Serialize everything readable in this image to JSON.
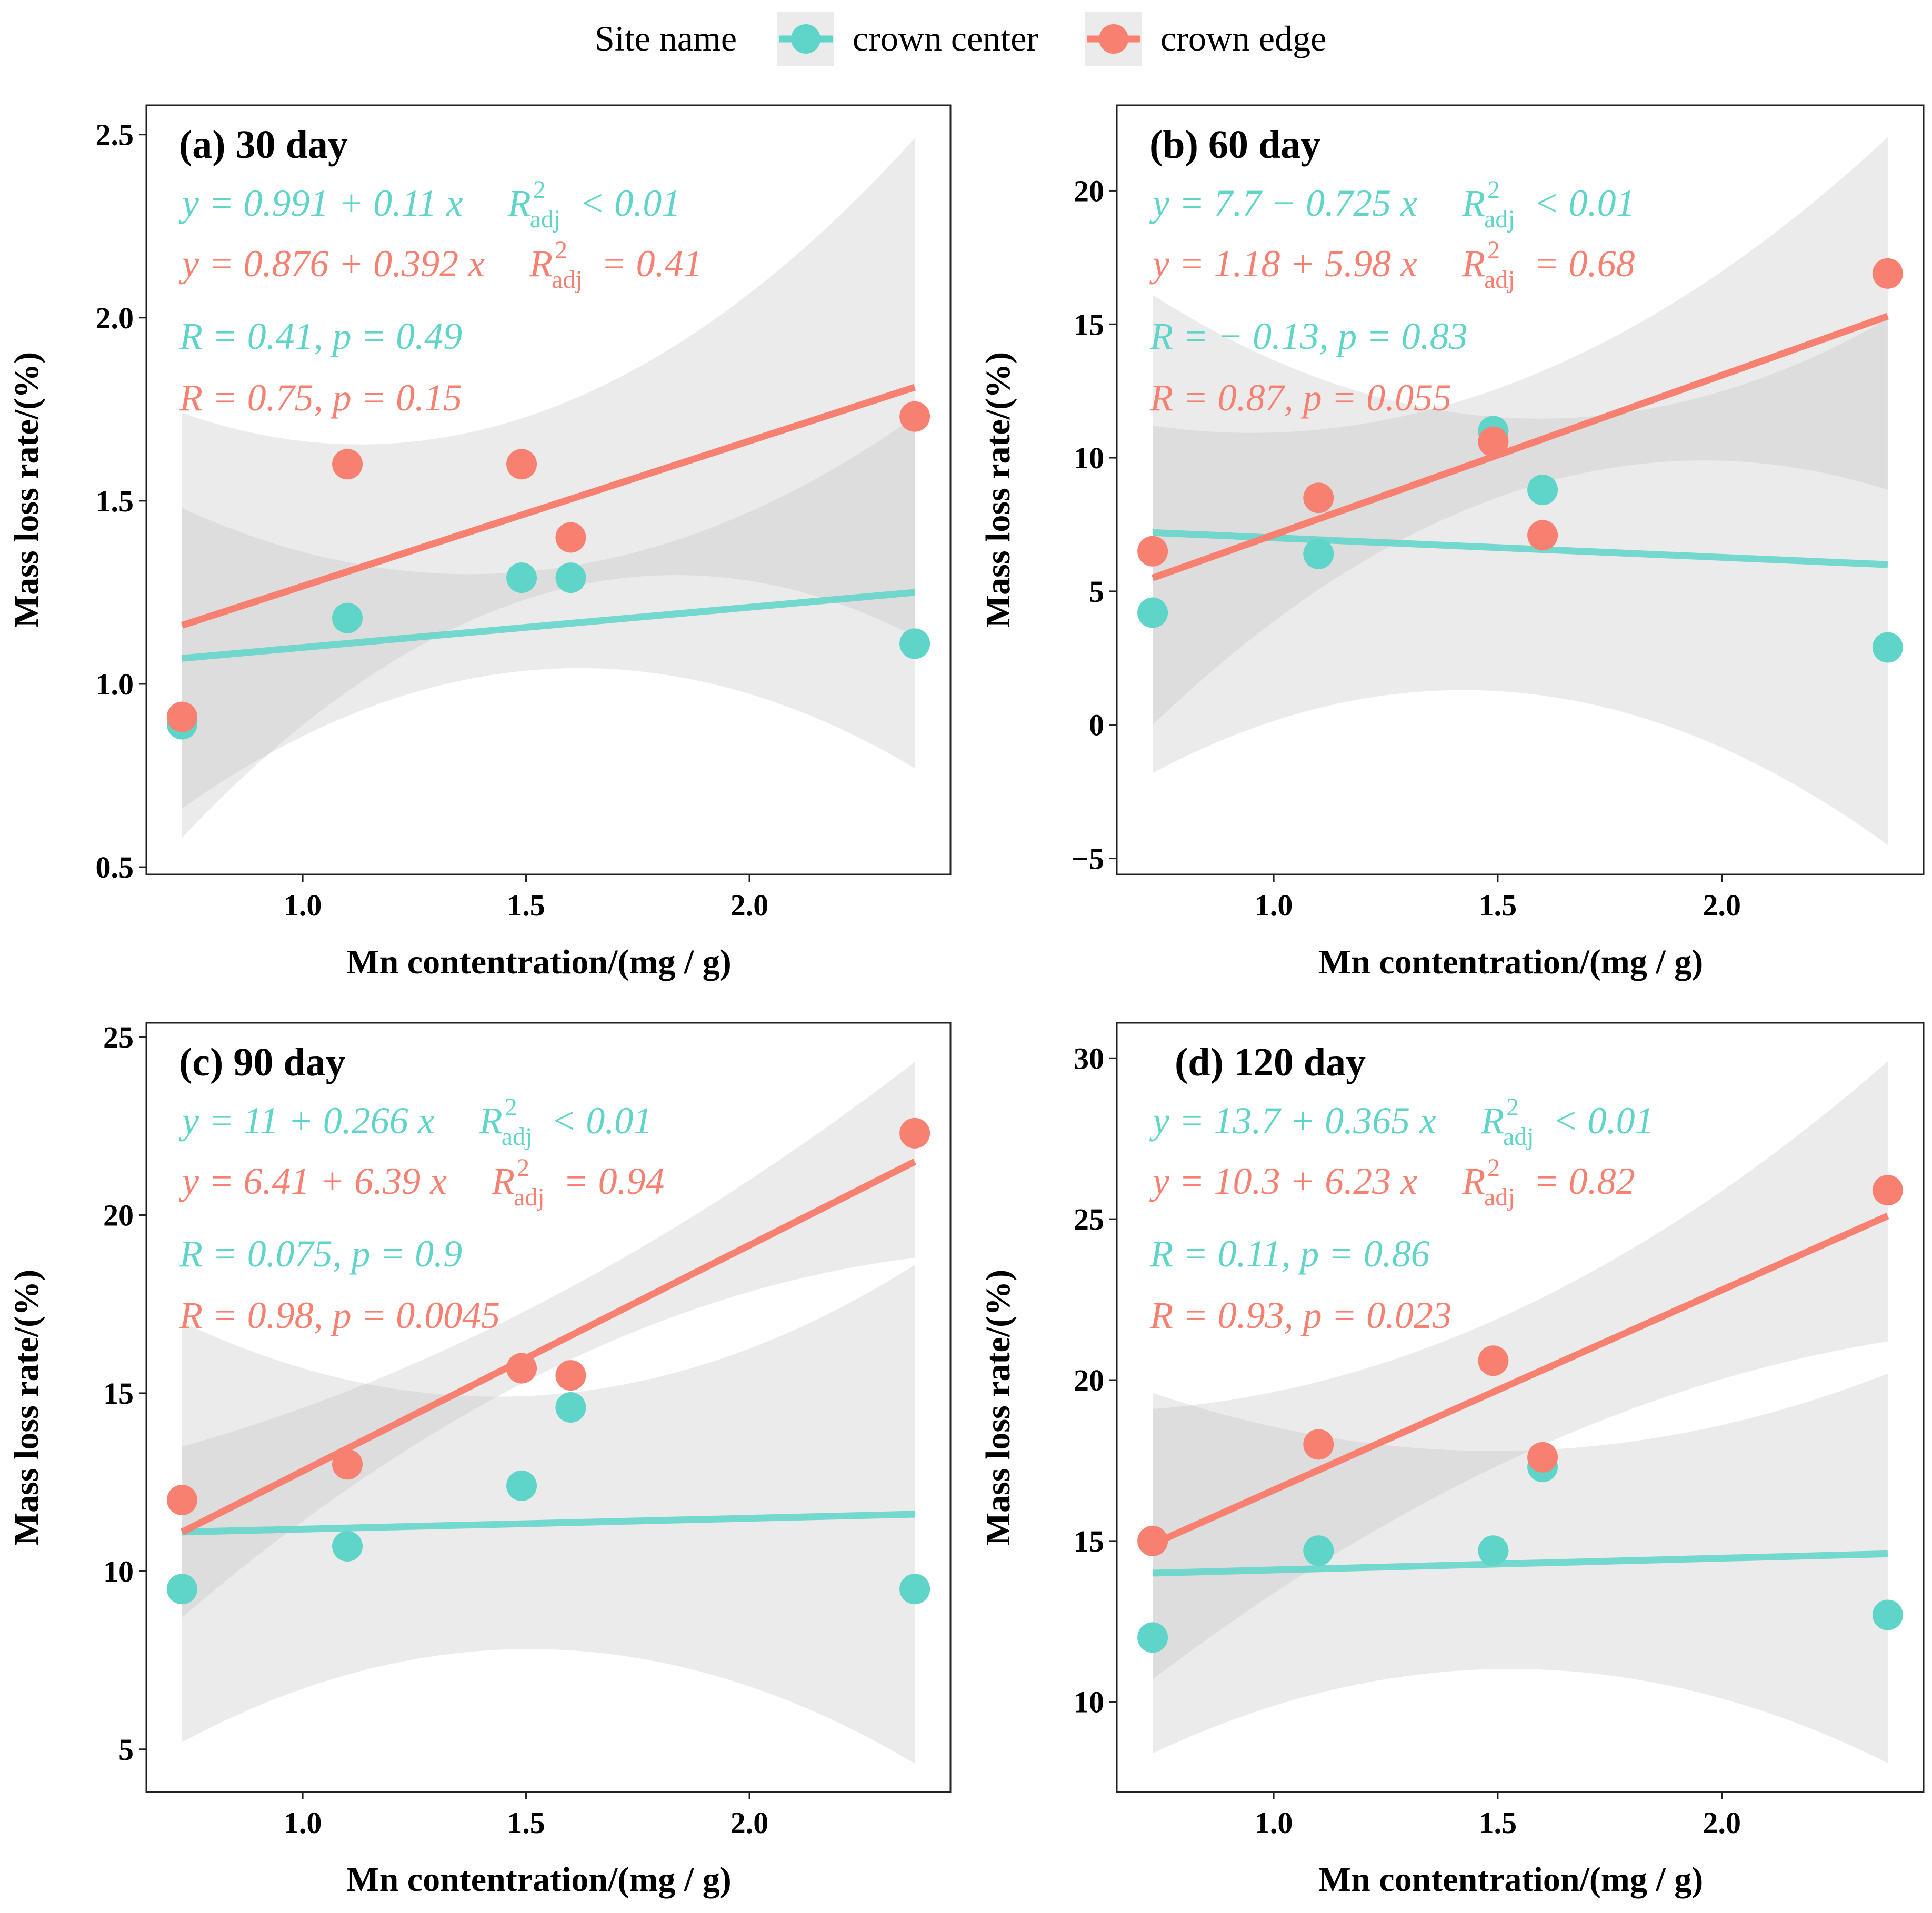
{
  "legend": {
    "title": "Site name",
    "items": [
      {
        "label": "crown center",
        "color": "#5ED5C8"
      },
      {
        "label": "crown edge",
        "color": "#F88070"
      }
    ]
  },
  "colors": {
    "center": "#5ED5C8",
    "edge": "#F88070",
    "band": "#BEBEBE"
  },
  "chart_data": [
    {
      "type": "scatter",
      "title": "(a) 30 day",
      "xlabel": "Mn contentration/(mg / g)",
      "ylabel": "Mass loss rate/(%)",
      "xlim": [
        0.65,
        2.45
      ],
      "ylim": [
        0.48,
        2.58
      ],
      "xticks": [
        1.0,
        1.5,
        2.0
      ],
      "xtick_labels": [
        "1.0",
        "1.5",
        "2.0"
      ],
      "yticks": [
        0.5,
        1.0,
        1.5,
        2.0,
        2.5
      ],
      "ytick_labels": [
        "0.5",
        "1.0",
        "1.5",
        "2.0",
        "2.5"
      ],
      "series": [
        {
          "name": "crown center",
          "x": [
            0.73,
            1.1,
            1.49,
            1.6,
            2.37
          ],
          "y": [
            0.89,
            1.18,
            1.29,
            1.29,
            1.11
          ],
          "fit": {
            "x0": 0.73,
            "y0": 1.07,
            "x1": 2.37,
            "y1": 1.25
          },
          "band": {
            "x": [
              0.73,
              1.4,
              2.37
            ],
            "lower": [
              0.66,
              1.02,
              0.77
            ],
            "upper": [
              1.48,
              1.3,
              1.73
            ]
          }
        },
        {
          "name": "crown edge",
          "x": [
            0.73,
            1.1,
            1.49,
            1.6,
            2.37
          ],
          "y": [
            0.91,
            1.6,
            1.6,
            1.4,
            1.73
          ],
          "fit": {
            "x0": 0.73,
            "y0": 1.16,
            "x1": 2.37,
            "y1": 1.81
          },
          "band": {
            "x": [
              0.73,
              1.45,
              2.37
            ],
            "lower": [
              0.58,
              1.21,
              1.13
            ],
            "upper": [
              1.74,
              1.71,
              2.49
            ]
          }
        }
      ],
      "annotations": {
        "center_eq": "y = 0.991 + 0.11 x",
        "center_r2": "< 0.01",
        "edge_eq": "y = 0.876 + 0.392 x",
        "edge_r2": "= 0.41",
        "center_r": "R = 0.41, p = 0.49",
        "edge_r": "R = 0.75, p = 0.15"
      }
    },
    {
      "type": "scatter",
      "title": "(b) 60 day",
      "xlabel": "Mn contentration/(mg / g)",
      "ylabel": "Mass loss rate/(%)",
      "xlim": [
        0.65,
        2.45
      ],
      "ylim": [
        -5.6,
        23.2
      ],
      "xticks": [
        1.0,
        1.5,
        2.0
      ],
      "xtick_labels": [
        "1.0",
        "1.5",
        "2.0"
      ],
      "yticks": [
        -5,
        0,
        5,
        10,
        15,
        20
      ],
      "ytick_labels": [
        "−5",
        "0",
        "5",
        "10",
        "15",
        "20"
      ],
      "series": [
        {
          "name": "crown center",
          "x": [
            0.73,
            1.1,
            1.49,
            1.6,
            2.37
          ],
          "y": [
            4.2,
            6.4,
            11.0,
            8.8,
            2.9
          ],
          "fit": {
            "x0": 0.73,
            "y0": 7.2,
            "x1": 2.37,
            "y1": 6.0
          },
          "band": {
            "x": [
              0.73,
              1.4,
              2.37
            ],
            "lower": [
              -1.8,
              1.3,
              -4.5
            ],
            "upper": [
              16.1,
              11.7,
              15.2
            ]
          }
        },
        {
          "name": "crown edge",
          "x": [
            0.73,
            1.1,
            1.49,
            1.6,
            2.37
          ],
          "y": [
            6.5,
            8.5,
            10.6,
            7.1,
            16.9
          ],
          "fit": {
            "x0": 0.73,
            "y0": 5.5,
            "x1": 2.37,
            "y1": 15.3
          },
          "band": {
            "x": [
              0.73,
              1.45,
              2.37
            ],
            "lower": [
              0.0,
              8.2,
              8.8
            ],
            "upper": [
              11.2,
              12.3,
              22.0
            ]
          }
        }
      ],
      "annotations": {
        "center_eq": "y = 7.7 − 0.725 x",
        "center_r2": "< 0.01",
        "edge_eq": "y = 1.18 + 5.98 x",
        "edge_r2": "= 0.68",
        "center_r": "R = − 0.13, p = 0.83",
        "edge_r": "R = 0.87, p = 0.055"
      }
    },
    {
      "type": "scatter",
      "title": "(c) 90 day",
      "xlabel": "Mn contentration/(mg / g)",
      "ylabel": "Mass loss rate/(%)",
      "xlim": [
        0.65,
        2.45
      ],
      "ylim": [
        3.8,
        25.4
      ],
      "xticks": [
        1.0,
        1.5,
        2.0
      ],
      "xtick_labels": [
        "1.0",
        "1.5",
        "2.0"
      ],
      "yticks": [
        5,
        10,
        15,
        20,
        25
      ],
      "ytick_labels": [
        "5",
        "10",
        "15",
        "20",
        "25"
      ],
      "series": [
        {
          "name": "crown center",
          "x": [
            0.73,
            1.1,
            1.49,
            1.6,
            2.37
          ],
          "y": [
            9.5,
            10.7,
            12.4,
            14.6,
            9.5
          ],
          "fit": {
            "x0": 0.73,
            "y0": 11.1,
            "x1": 2.37,
            "y1": 11.6
          },
          "band": {
            "x": [
              0.73,
              1.45,
              2.37
            ],
            "lower": [
              5.2,
              7.8,
              4.6
            ],
            "upper": [
              17.0,
              14.9,
              18.6
            ]
          }
        },
        {
          "name": "crown edge",
          "x": [
            0.73,
            1.1,
            1.49,
            1.6,
            2.37
          ],
          "y": [
            12.0,
            13.0,
            15.7,
            15.5,
            22.3
          ],
          "fit": {
            "x0": 0.73,
            "y0": 11.1,
            "x1": 2.37,
            "y1": 21.5
          },
          "band": {
            "x": [
              0.73,
              1.45,
              2.37
            ],
            "lower": [
              8.7,
              15.0,
              18.8
            ],
            "upper": [
              13.5,
              17.0,
              24.3
            ]
          }
        }
      ],
      "annotations": {
        "center_eq": "y = 11 + 0.266 x",
        "center_r2": "< 0.01",
        "edge_eq": "y = 6.41 + 6.39 x",
        "edge_r2": "= 0.94",
        "center_r": "R = 0.075, p = 0.9",
        "edge_r": "R = 0.98, p = 0.0045"
      }
    },
    {
      "type": "scatter",
      "title": "(d) 120 day",
      "xlabel": "Mn contentration/(mg / g)",
      "ylabel": "Mass loss rate/(%)",
      "xlim": [
        0.65,
        2.45
      ],
      "ylim": [
        7.2,
        31.1
      ],
      "xticks": [
        1.0,
        1.5,
        2.0
      ],
      "xtick_labels": [
        "1.0",
        "1.5",
        "2.0"
      ],
      "yticks": [
        10,
        15,
        20,
        25,
        30
      ],
      "ytick_labels": [
        "10",
        "15",
        "20",
        "25",
        "30"
      ],
      "series": [
        {
          "name": "crown center",
          "x": [
            0.73,
            1.1,
            1.49,
            1.6,
            2.37
          ],
          "y": [
            12.0,
            14.7,
            14.7,
            17.3,
            12.7
          ],
          "fit": {
            "x0": 0.73,
            "y0": 14.0,
            "x1": 2.37,
            "y1": 14.6
          },
          "band": {
            "x": [
              0.73,
              1.45,
              2.37
            ],
            "lower": [
              8.4,
              11.0,
              8.1
            ],
            "upper": [
              19.6,
              17.8,
              20.2
            ]
          }
        },
        {
          "name": "crown edge",
          "x": [
            0.73,
            1.1,
            1.49,
            1.6,
            2.37
          ],
          "y": [
            15.0,
            18.0,
            20.6,
            17.6,
            25.9
          ],
          "fit": {
            "x0": 0.73,
            "y0": 14.9,
            "x1": 2.37,
            "y1": 25.1
          },
          "band": {
            "x": [
              0.73,
              1.45,
              2.37
            ],
            "lower": [
              10.7,
              17.0,
              21.2
            ],
            "upper": [
              19.1,
              21.6,
              29.9
            ]
          }
        }
      ],
      "annotations": {
        "center_eq": "y = 13.7 + 0.365 x",
        "center_r2": "< 0.01",
        "edge_eq": "y = 10.3 + 6.23 x",
        "edge_r2": "= 0.82",
        "center_r": "R = 0.11, p = 0.86",
        "edge_r": "R = 0.93, p = 0.023"
      }
    }
  ]
}
